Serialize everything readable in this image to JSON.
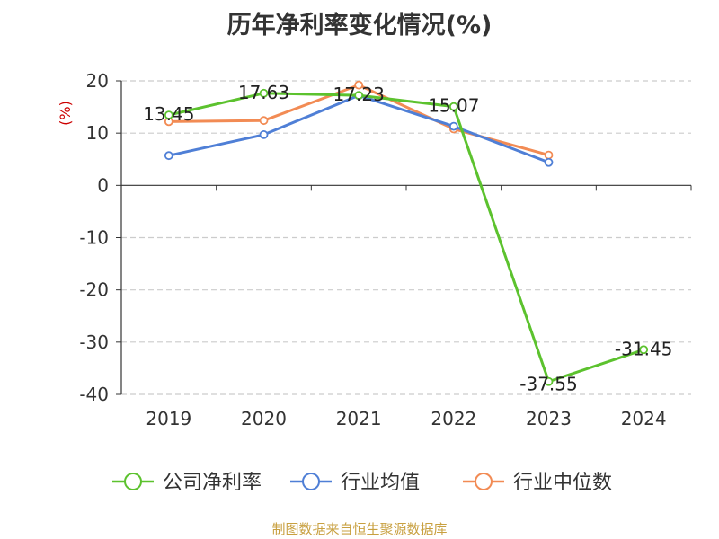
{
  "chart_data": {
    "type": "line",
    "title": "历年净利率变化情况(%)",
    "ylabel": "(%)",
    "xlabel": "",
    "categories": [
      "2019",
      "2020",
      "2021",
      "2022",
      "2023",
      "2024"
    ],
    "ylim": [
      -40,
      20
    ],
    "yticks": [
      20,
      10,
      0,
      -10,
      -20,
      -30,
      -40
    ],
    "grid": true,
    "legend_position": "bottom",
    "series": [
      {
        "name": "公司净利率",
        "color": "#5cc22e",
        "values": [
          13.45,
          17.63,
          17.23,
          15.07,
          -37.55,
          -31.45
        ],
        "data_labels": [
          "13.45",
          "17.63",
          "17.23",
          "15.07",
          "-37.55",
          "-31.45"
        ]
      },
      {
        "name": "行业均值",
        "color": "#4f7fd6",
        "values": [
          5.7,
          9.7,
          17.2,
          11.3,
          4.4,
          null
        ]
      },
      {
        "name": "行业中位数",
        "color": "#f28b54",
        "values": [
          12.2,
          12.4,
          19.2,
          10.8,
          5.8,
          null
        ]
      }
    ]
  },
  "source_note": "制图数据来自恒生聚源数据库"
}
